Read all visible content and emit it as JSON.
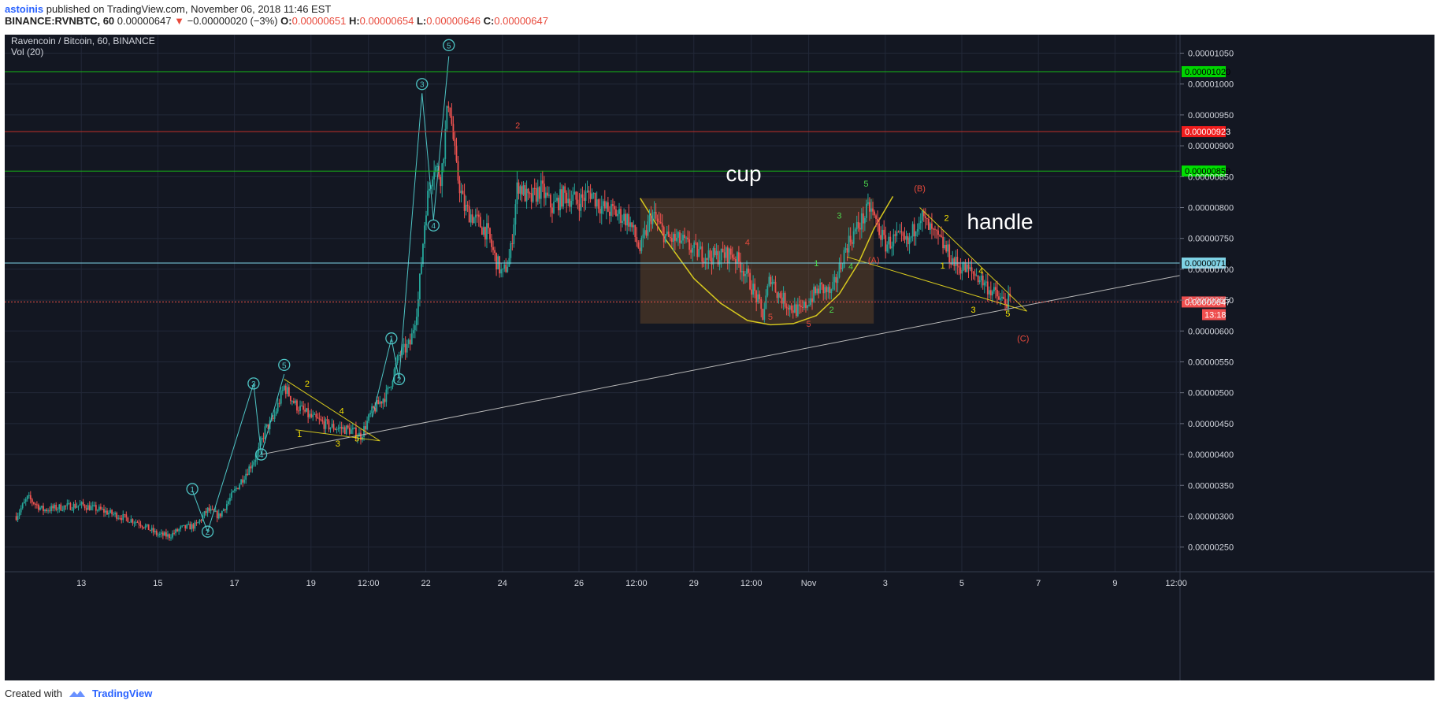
{
  "header": {
    "author": "astoinis",
    "published_text": "published on TradingView.com, November 06, 2018 11:46 EST",
    "symbol": "BINANCE:RVNBTC, 60",
    "price": "0.00000647",
    "arrow": "▼",
    "change": "−0.00000020 (−3%)",
    "o_label": "O:",
    "o_value": "0.00000651",
    "h_label": "H:",
    "h_value": "0.00000654",
    "l_label": "L:",
    "l_value": "0.00000646",
    "c_label": "C:",
    "c_value": "0.00000647"
  },
  "footer": {
    "created_with": "Created with",
    "brand": "TradingView"
  },
  "chart_data": {
    "type": "candlestick",
    "title": "Ravencoin / Bitcoin, 60, BINANCE",
    "indicator": "Vol (20)",
    "ylim": [
      2.1e-06,
      1.08e-05
    ],
    "y_ticks": [
      {
        "v": 1.05e-05,
        "label": "0.00001050"
      },
      {
        "v": 1e-05,
        "label": "0.00001000"
      },
      {
        "v": 9.5e-06,
        "label": "0.00000950"
      },
      {
        "v": 9e-06,
        "label": "0.00000900"
      },
      {
        "v": 8.5e-06,
        "label": "0.00000850"
      },
      {
        "v": 8e-06,
        "label": "0.00000800"
      },
      {
        "v": 7.5e-06,
        "label": "0.00000750"
      },
      {
        "v": 7e-06,
        "label": "0.00000700"
      },
      {
        "v": 6.5e-06,
        "label": "0.00000650"
      },
      {
        "v": 6e-06,
        "label": "0.00000600"
      },
      {
        "v": 5.5e-06,
        "label": "0.00000550"
      },
      {
        "v": 5e-06,
        "label": "0.00000500"
      },
      {
        "v": 4.5e-06,
        "label": "0.00000450"
      },
      {
        "v": 4e-06,
        "label": "0.00000400"
      },
      {
        "v": 3.5e-06,
        "label": "0.00000350"
      },
      {
        "v": 3e-06,
        "label": "0.00000300"
      },
      {
        "v": 2.5e-06,
        "label": "0.00000250"
      }
    ],
    "x_ticks": [
      {
        "t": 13,
        "label": "13"
      },
      {
        "t": 15,
        "label": "15"
      },
      {
        "t": 17,
        "label": "17"
      },
      {
        "t": 19,
        "label": "19"
      },
      {
        "t": 20.5,
        "label": "12:00"
      },
      {
        "t": 22,
        "label": "22"
      },
      {
        "t": 24,
        "label": "24"
      },
      {
        "t": 26,
        "label": "26"
      },
      {
        "t": 27.5,
        "label": "12:00"
      },
      {
        "t": 29,
        "label": "29"
      },
      {
        "t": 30.5,
        "label": "12:00"
      },
      {
        "t": 32,
        "label": "Nov"
      },
      {
        "t": 34,
        "label": "3"
      },
      {
        "t": 36,
        "label": "5"
      },
      {
        "t": 38,
        "label": "7"
      },
      {
        "t": 40,
        "label": "9"
      },
      {
        "t": 41.6,
        "label": "12:00"
      }
    ],
    "xlim": [
      11.0,
      41.7
    ],
    "price_path": [
      [
        11.3,
        3e-06
      ],
      [
        11.6,
        3.3e-06
      ],
      [
        12.0,
        3.1e-06
      ],
      [
        12.5,
        3.15e-06
      ],
      [
        13.0,
        3.18e-06
      ],
      [
        13.5,
        3.1e-06
      ],
      [
        14.0,
        3e-06
      ],
      [
        14.5,
        2.9e-06
      ],
      [
        15.0,
        2.7e-06
      ],
      [
        15.3,
        2.68e-06
      ],
      [
        15.6,
        2.8e-06
      ],
      [
        16.0,
        2.85e-06
      ],
      [
        16.3,
        3.1e-06
      ],
      [
        16.6,
        3e-06
      ],
      [
        17.0,
        3.4e-06
      ],
      [
        17.3,
        3.7e-06
      ],
      [
        17.6,
        4e-06
      ],
      [
        17.8,
        4.4e-06
      ],
      [
        18.0,
        4.55e-06
      ],
      [
        18.3,
        5.1e-06
      ],
      [
        18.6,
        4.8e-06
      ],
      [
        19.0,
        4.6e-06
      ],
      [
        19.5,
        4.45e-06
      ],
      [
        20.0,
        4.4e-06
      ],
      [
        20.3,
        4.3e-06
      ],
      [
        20.6,
        4.7e-06
      ],
      [
        21.0,
        5e-06
      ],
      [
        21.3,
        5.6e-06
      ],
      [
        21.6,
        5.8e-06
      ],
      [
        21.8,
        6.5e-06
      ],
      [
        22.0,
        8e-06
      ],
      [
        22.2,
        8.7e-06
      ],
      [
        22.4,
        8.5e-06
      ],
      [
        22.6,
        9.8e-06
      ],
      [
        22.8,
        8.6e-06
      ],
      [
        23.0,
        8e-06
      ],
      [
        23.3,
        7.8e-06
      ],
      [
        23.6,
        7.6e-06
      ],
      [
        23.8,
        7.2e-06
      ],
      [
        24.0,
        6.9e-06
      ],
      [
        24.2,
        7.2e-06
      ],
      [
        24.4,
        8.4e-06
      ],
      [
        24.7,
        8.1e-06
      ],
      [
        25.0,
        8.3e-06
      ],
      [
        25.3,
        8e-06
      ],
      [
        25.6,
        8.2e-06
      ],
      [
        26.0,
        8.1e-06
      ],
      [
        26.3,
        8.25e-06
      ],
      [
        26.6,
        8e-06
      ],
      [
        27.0,
        7.9e-06
      ],
      [
        27.3,
        7.8e-06
      ],
      [
        27.6,
        7.3e-06
      ],
      [
        27.9,
        7.9e-06
      ],
      [
        28.3,
        7.5e-06
      ],
      [
        28.7,
        7.45e-06
      ],
      [
        29.0,
        7.3e-06
      ],
      [
        29.5,
        7.2e-06
      ],
      [
        30.0,
        7.25e-06
      ],
      [
        30.3,
        7e-06
      ],
      [
        30.6,
        6.6e-06
      ],
      [
        30.8,
        6.25e-06
      ],
      [
        31.0,
        6.9e-06
      ],
      [
        31.2,
        6.6e-06
      ],
      [
        31.5,
        6.4e-06
      ],
      [
        31.8,
        6.3e-06
      ],
      [
        32.0,
        6.5e-06
      ],
      [
        32.3,
        6.7e-06
      ],
      [
        32.6,
        6.6e-06
      ],
      [
        33.0,
        7.4e-06
      ],
      [
        33.3,
        7.7e-06
      ],
      [
        33.6,
        8e-06
      ],
      [
        33.8,
        7.7e-06
      ],
      [
        34.0,
        7.4e-06
      ],
      [
        34.3,
        7.5e-06
      ],
      [
        34.6,
        7.4e-06
      ],
      [
        34.9,
        7.9e-06
      ],
      [
        35.2,
        7.6e-06
      ],
      [
        35.5,
        7.4e-06
      ],
      [
        35.8,
        7.1e-06
      ],
      [
        36.1,
        7e-06
      ],
      [
        36.4,
        6.9e-06
      ],
      [
        36.7,
        6.7e-06
      ],
      [
        37.0,
        6.5e-06
      ],
      [
        37.3,
        6.47e-06
      ]
    ],
    "horizontal_levels": [
      {
        "price": 1.02e-05,
        "label": "0.00001020",
        "color": "#16b916",
        "box": "#00d400"
      },
      {
        "price": 9.23e-06,
        "label": "0.00000923",
        "color": "#c0302a",
        "box": "#ef1d1d"
      },
      {
        "price": 8.59e-06,
        "label": "0.00000859",
        "color": "#16b916",
        "box": "#00e000"
      },
      {
        "price": 7.1e-06,
        "label": "0.00000710",
        "color": "#7fd3e6",
        "box": "#7fd3e6"
      },
      {
        "price": 6.47e-06,
        "label": "0.00000647",
        "color": "#e8524a",
        "box": "#ef4f4f",
        "dotted": true
      }
    ],
    "countdown": "13:18",
    "annotations": [
      {
        "text": "cup",
        "t": 30.3,
        "p": 8.43e-06,
        "size": 28,
        "color": "#ffffff"
      },
      {
        "text": "handle",
        "t": 37.0,
        "p": 7.65e-06,
        "size": 28,
        "color": "#ffffff"
      },
      {
        "text": "2",
        "t": 24.4,
        "p": 9.28e-06,
        "size": 11,
        "color": "#e84a3c"
      },
      {
        "text": "4",
        "t": 30.4,
        "p": 7.39e-06,
        "size": 11,
        "color": "#e84a3c"
      },
      {
        "text": "5",
        "t": 31.0,
        "p": 6.18e-06,
        "size": 11,
        "color": "#e84a3c"
      },
      {
        "text": "5",
        "t": 32.0,
        "p": 6.07e-06,
        "size": 11,
        "color": "#e84a3c"
      },
      {
        "text": "1",
        "t": 32.2,
        "p": 7.05e-06,
        "size": 11,
        "color": "#4cd64c"
      },
      {
        "text": "2",
        "t": 32.6,
        "p": 6.3e-06,
        "size": 11,
        "color": "#4cd64c"
      },
      {
        "text": "3",
        "t": 32.8,
        "p": 7.82e-06,
        "size": 11,
        "color": "#4cd64c"
      },
      {
        "text": "4",
        "t": 33.1,
        "p": 7e-06,
        "size": 11,
        "color": "#4cd64c"
      },
      {
        "text": "5",
        "t": 33.5,
        "p": 8.34e-06,
        "size": 11,
        "color": "#4cd64c"
      },
      {
        "text": "(A)",
        "t": 33.7,
        "p": 7.1e-06,
        "size": 11,
        "color": "#e84a3c"
      },
      {
        "text": "(B)",
        "t": 34.9,
        "p": 8.26e-06,
        "size": 11,
        "color": "#e84a3c"
      },
      {
        "text": "(C)",
        "t": 37.6,
        "p": 5.83e-06,
        "size": 11,
        "color": "#e84a3c"
      },
      {
        "text": "1",
        "t": 35.5,
        "p": 7.01e-06,
        "size": 11,
        "color": "#f5e000"
      },
      {
        "text": "2",
        "t": 35.6,
        "p": 7.78e-06,
        "size": 11,
        "color": "#f5e000"
      },
      {
        "text": "3",
        "t": 36.3,
        "p": 6.3e-06,
        "size": 11,
        "color": "#f5e000"
      },
      {
        "text": "4",
        "t": 36.5,
        "p": 6.93e-06,
        "size": 11,
        "color": "#f5e000"
      },
      {
        "text": "5",
        "t": 37.2,
        "p": 6.23e-06,
        "size": 11,
        "color": "#f5e000"
      },
      {
        "text": "2",
        "t": 18.9,
        "p": 5.1e-06,
        "size": 11,
        "color": "#f5e000"
      },
      {
        "text": "1",
        "t": 18.7,
        "p": 4.28e-06,
        "size": 11,
        "color": "#f5e000"
      },
      {
        "text": "4",
        "t": 19.8,
        "p": 4.66e-06,
        "size": 11,
        "color": "#f5e000"
      },
      {
        "text": "3",
        "t": 19.7,
        "p": 4.13e-06,
        "size": 11,
        "color": "#f5e000"
      },
      {
        "text": "5",
        "t": 20.2,
        "p": 4.21e-06,
        "size": 11,
        "color": "#f5e000"
      }
    ],
    "circled_labels": [
      {
        "text": "1",
        "t": 15.9,
        "p": 3.44e-06
      },
      {
        "text": "2",
        "t": 16.3,
        "p": 2.75e-06
      },
      {
        "text": "3",
        "t": 17.5,
        "p": 5.15e-06
      },
      {
        "text": "4",
        "t": 17.7,
        "p": 4e-06
      },
      {
        "text": "5",
        "t": 18.3,
        "p": 5.45e-06
      },
      {
        "text": "1",
        "t": 21.1,
        "p": 5.88e-06
      },
      {
        "text": "2",
        "t": 21.3,
        "p": 5.22e-06
      },
      {
        "text": "3",
        "t": 21.9,
        "p": 1e-05
      },
      {
        "text": "4",
        "t": 22.2,
        "p": 7.71e-06
      },
      {
        "text": "5",
        "t": 22.6,
        "p": 1.063e-05
      }
    ],
    "lines": [
      {
        "from": [
          17.7,
          4e-06
        ],
        "to": [
          41.7,
          6.9e-06
        ],
        "color": "#b8b8b8"
      },
      {
        "from": [
          18.3,
          5.22e-06
        ],
        "to": [
          20.8,
          4.22e-06
        ],
        "color": "#d6c81e"
      },
      {
        "from": [
          18.6,
          4.4e-06
        ],
        "to": [
          20.8,
          4.22e-06
        ],
        "color": "#d6c81e"
      },
      {
        "from": [
          34.9,
          8e-06
        ],
        "to": [
          37.7,
          6.32e-06
        ],
        "color": "#d6c81e"
      },
      {
        "from": [
          33.0,
          7.2e-06
        ],
        "to": [
          37.7,
          6.32e-06
        ],
        "color": "#d6c81e"
      },
      {
        "from": [
          15.9,
          3.42e-06
        ],
        "to": [
          16.3,
          2.75e-06
        ],
        "color": "#4ec4c4"
      },
      {
        "from": [
          16.3,
          2.75e-06
        ],
        "to": [
          17.5,
          5.15e-06
        ],
        "color": "#4ec4c4"
      },
      {
        "from": [
          17.5,
          5.15e-06
        ],
        "to": [
          17.7,
          4e-06
        ],
        "color": "#4ec4c4"
      },
      {
        "from": [
          17.7,
          4e-06
        ],
        "to": [
          18.3,
          5.3e-06
        ],
        "color": "#4ec4c4"
      },
      {
        "from": [
          20.6,
          4.6e-06
        ],
        "to": [
          21.1,
          5.88e-06
        ],
        "color": "#4ec4c4"
      },
      {
        "from": [
          21.1,
          5.88e-06
        ],
        "to": [
          21.3,
          5.22e-06
        ],
        "color": "#4ec4c4"
      },
      {
        "from": [
          21.3,
          5.22e-06
        ],
        "to": [
          21.9,
          9.85e-06
        ],
        "color": "#4ec4c4"
      },
      {
        "from": [
          21.9,
          9.85e-06
        ],
        "to": [
          22.2,
          7.8e-06
        ],
        "color": "#4ec4c4"
      },
      {
        "from": [
          22.2,
          7.8e-06
        ],
        "to": [
          22.6,
          1.045e-05
        ],
        "color": "#4ec4c4"
      }
    ],
    "cup_region": {
      "t1": 27.6,
      "t2": 33.7,
      "p_top": 8.15e-06,
      "p_bottom": 6.12e-06
    },
    "cup_curve": [
      [
        27.6,
        8.15e-06
      ],
      [
        28.3,
        7.45e-06
      ],
      [
        29.0,
        6.85e-06
      ],
      [
        29.7,
        6.45e-06
      ],
      [
        30.4,
        6.17e-06
      ],
      [
        31.0,
        6.1e-06
      ],
      [
        31.6,
        6.12e-06
      ],
      [
        32.2,
        6.25e-06
      ],
      [
        32.8,
        6.6e-06
      ],
      [
        33.3,
        7.1e-06
      ],
      [
        33.7,
        7.65e-06
      ],
      [
        34.2,
        8.18e-06
      ]
    ]
  }
}
